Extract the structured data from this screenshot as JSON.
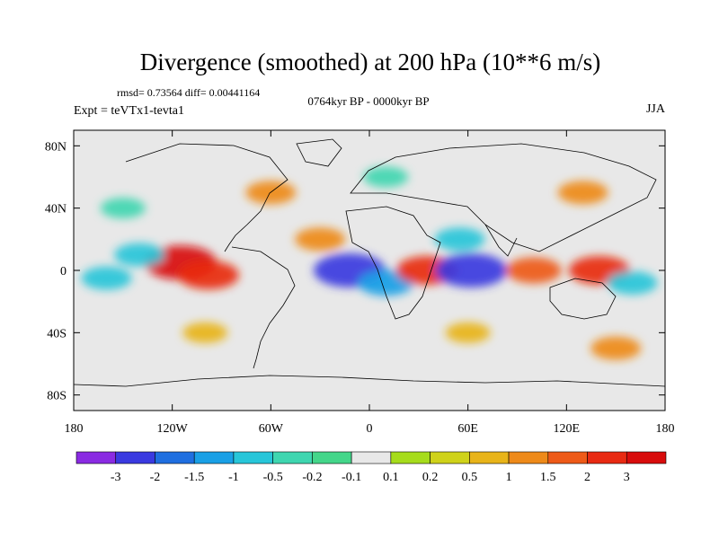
{
  "title": "Divergence (smoothed) at 200 hPa (10**6 m/s)",
  "stats": "rmsd= 0.73564 diff= 0.00441164",
  "experiment": "Expt = teVTx1-tevta1",
  "period": "0764kyr BP - 0000kyr BP",
  "season": "JJA",
  "chart_data": {
    "type": "heatmap",
    "variable": "Divergence (smoothed) at 200 hPa",
    "units": "10**6 m/s",
    "x_ticks": [
      "180",
      "120W",
      "60W",
      "0",
      "60E",
      "120E",
      "180"
    ],
    "y_ticks": [
      "80N",
      "40N",
      "0",
      "40S",
      "80S"
    ],
    "lon_range": [
      -180,
      180
    ],
    "lat_range": [
      -90,
      90
    ],
    "color_levels": [
      "-3",
      "-2",
      "-1.5",
      "-1",
      "-0.5",
      "-0.2",
      "-0.1",
      "0.1",
      "0.2",
      "0.5",
      "1",
      "1.5",
      "2",
      "3"
    ],
    "colors": [
      "#8a2be2",
      "#3a3ae0",
      "#1f6fe0",
      "#1aa0e6",
      "#27c6d9",
      "#3fd6b0",
      "#44d68a",
      "#e8e8e8",
      "#a6dc1c",
      "#cfd21a",
      "#e8b41a",
      "#ee8a1a",
      "#ee5a18",
      "#e82a12",
      "#d80c0c"
    ],
    "features": [
      {
        "lon": -115,
        "lat": 5,
        "value": 3
      },
      {
        "lon": -98,
        "lat": -3,
        "value": 2
      },
      {
        "lon": -160,
        "lat": -5,
        "value": -1
      },
      {
        "lon": -140,
        "lat": 10,
        "value": -1
      },
      {
        "lon": -12,
        "lat": 0,
        "value": -3
      },
      {
        "lon": 10,
        "lat": -8,
        "value": -1.5
      },
      {
        "lon": 35,
        "lat": 0,
        "value": 2
      },
      {
        "lon": 62,
        "lat": 0,
        "value": -3
      },
      {
        "lon": 55,
        "lat": 20,
        "value": -1
      },
      {
        "lon": 100,
        "lat": 0,
        "value": 1.5
      },
      {
        "lon": 140,
        "lat": 0,
        "value": 2
      },
      {
        "lon": 160,
        "lat": -8,
        "value": -1
      },
      {
        "lon": -30,
        "lat": 20,
        "value": 1
      },
      {
        "lon": -60,
        "lat": 50,
        "value": 1
      },
      {
        "lon": 130,
        "lat": 50,
        "value": 1
      },
      {
        "lon": -150,
        "lat": 40,
        "value": -0.5
      },
      {
        "lon": 10,
        "lat": 60,
        "value": -0.5
      },
      {
        "lon": -100,
        "lat": -40,
        "value": 0.5
      },
      {
        "lon": 60,
        "lat": -40,
        "value": 0.5
      },
      {
        "lon": 150,
        "lat": -50,
        "value": 1
      }
    ]
  }
}
